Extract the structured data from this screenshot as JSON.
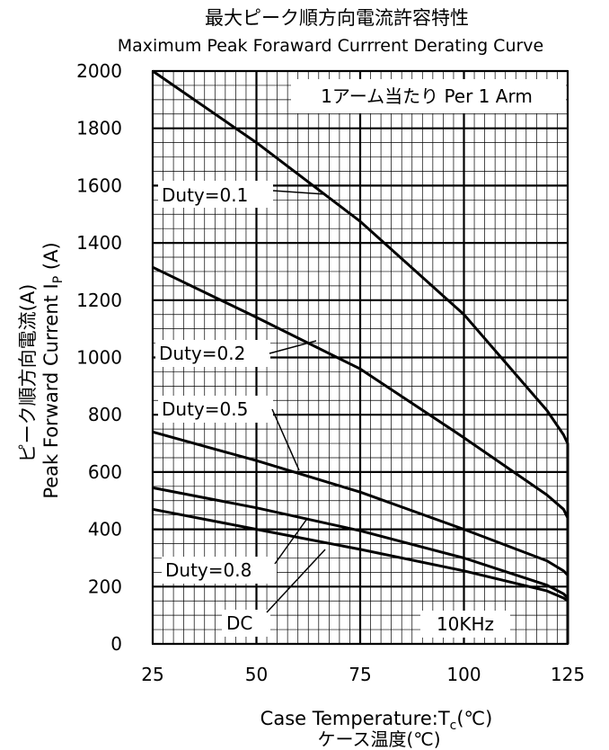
{
  "chart_data": {
    "type": "line",
    "title": "最大ピーク順方向電流許容特性",
    "subtitle": "Maximum Peak Foraward Currrent Derating Curve",
    "xlabel": "Case Temperature:T",
    "xlabel_sub": "c",
    "xlabel_unit": "(℃)",
    "xlabel_jp": "ケース温度(℃)",
    "ylabel_jp": "ピーク順方向電流(A)",
    "ylabel": "Peak Forward Current I",
    "ylabel_sub": "P",
    "ylabel_unit": " (A)",
    "xlim": [
      25,
      125
    ],
    "ylim": [
      0,
      2000
    ],
    "xticks": [
      "25",
      "50",
      "75",
      "100",
      "125"
    ],
    "yticks": [
      "0",
      "200",
      "400",
      "600",
      "800",
      "1000",
      "1200",
      "1400",
      "1600",
      "1800",
      "2000"
    ],
    "grid": true,
    "annotation_arm": "1アーム当たり Per 1 Arm",
    "annotation_freq": "10KHz",
    "series": [
      {
        "name": "Duty=0.1",
        "x": [
          25,
          50,
          75,
          100,
          120,
          124,
          125,
          125
        ],
        "y": [
          2000,
          1750,
          1475,
          1150,
          815,
          730,
          700,
          0
        ]
      },
      {
        "name": "Duty=0.2",
        "x": [
          25,
          50,
          75,
          100,
          120,
          124,
          125,
          125
        ],
        "y": [
          1315,
          1140,
          960,
          720,
          520,
          470,
          440,
          0
        ]
      },
      {
        "name": "Duty=0.5",
        "x": [
          25,
          50,
          75,
          100,
          120,
          124,
          125,
          125
        ],
        "y": [
          740,
          640,
          530,
          400,
          290,
          255,
          240,
          0
        ]
      },
      {
        "name": "Duty=0.8",
        "x": [
          25,
          50,
          75,
          100,
          120,
          124,
          125
        ],
        "y": [
          545,
          475,
          395,
          300,
          205,
          175,
          160
        ]
      },
      {
        "name": "DC",
        "x": [
          25,
          50,
          75,
          100,
          120,
          124,
          125
        ],
        "y": [
          470,
          400,
          330,
          255,
          185,
          160,
          150
        ]
      }
    ],
    "colors": {
      "line": "#000000",
      "grid": "#000000",
      "background": "#ffffff"
    }
  }
}
